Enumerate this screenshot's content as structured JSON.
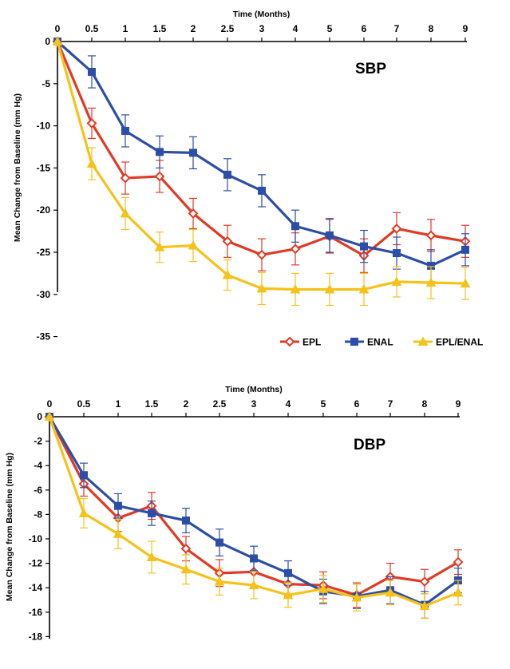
{
  "chart_data": [
    {
      "type": "line",
      "panel_label": "SBP",
      "xlabel": "Time (Months)",
      "ylabel": "Mean Change from Baseline (mm Hg)",
      "x_ticks": [
        "0",
        "0.5",
        "1",
        "1.5",
        "2",
        "2.5",
        "3",
        "4",
        "5",
        "6",
        "7",
        "8",
        "9"
      ],
      "y_ticks": [
        "0",
        "-5",
        "-10",
        "-15",
        "-20",
        "-25",
        "-30",
        "-35"
      ],
      "ylim": [
        -35,
        0
      ],
      "grid": false,
      "series": [
        {
          "name": "EPL",
          "color": "#e03a25",
          "marker": "diamond",
          "values": [
            0,
            -9.7,
            -16.2,
            -16.0,
            -20.4,
            -23.7,
            -25.3,
            -24.6,
            -23.1,
            -25.4,
            -22.2,
            -23.0,
            -23.7
          ],
          "errors": [
            0,
            1.8,
            1.9,
            1.9,
            1.8,
            1.9,
            1.9,
            1.9,
            2.0,
            2.0,
            1.9,
            1.9,
            1.9
          ]
        },
        {
          "name": "ENAL",
          "color": "#2d4ea6",
          "marker": "square",
          "values": [
            0,
            -3.6,
            -10.6,
            -13.1,
            -13.2,
            -15.8,
            -17.7,
            -21.9,
            -23.0,
            -24.3,
            -25.1,
            -26.6,
            -24.7
          ],
          "errors": [
            0,
            1.9,
            1.9,
            1.9,
            1.9,
            1.9,
            1.9,
            1.9,
            2.0,
            1.9,
            1.9,
            1.9,
            1.9
          ]
        },
        {
          "name": "EPL/ENAL",
          "color": "#f5c21b",
          "marker": "triangle",
          "values": [
            0,
            -14.5,
            -20.4,
            -24.4,
            -24.2,
            -27.7,
            -29.3,
            -29.4,
            -29.4,
            -29.4,
            -28.5,
            -28.6,
            -28.7
          ],
          "errors": [
            0,
            1.9,
            1.9,
            1.8,
            1.9,
            1.8,
            1.9,
            1.9,
            1.9,
            1.9,
            1.8,
            1.9,
            1.9
          ]
        }
      ],
      "legend": "bottom-right"
    },
    {
      "type": "line",
      "panel_label": "DBP",
      "xlabel": "Time (Months)",
      "ylabel": "Mean Change from Baseline (mm Hg)",
      "x_ticks": [
        "0",
        "0.5",
        "1",
        "1.5",
        "2",
        "2.5",
        "3",
        "4",
        "5",
        "6",
        "7",
        "8",
        "9"
      ],
      "y_ticks": [
        "0",
        "-2",
        "-4",
        "-6",
        "-8",
        "-10",
        "-12",
        "-14",
        "-16",
        "-18"
      ],
      "ylim": [
        -18,
        0
      ],
      "grid": false,
      "series": [
        {
          "name": "EPL",
          "color": "#e03a25",
          "marker": "diamond",
          "values": [
            0,
            -5.5,
            -8.3,
            -7.3,
            -10.8,
            -12.8,
            -12.7,
            -13.7,
            -13.8,
            -14.6,
            -13.1,
            -13.5,
            -11.9
          ],
          "errors": [
            0,
            1.0,
            1.1,
            1.1,
            1.0,
            1.1,
            1.1,
            1.0,
            1.1,
            1.0,
            1.1,
            1.0,
            1.0
          ]
        },
        {
          "name": "ENAL",
          "color": "#2d4ea6",
          "marker": "square",
          "values": [
            0,
            -4.8,
            -7.3,
            -7.9,
            -8.5,
            -10.3,
            -11.6,
            -12.8,
            -14.3,
            -14.7,
            -14.2,
            -15.4,
            -13.4
          ],
          "errors": [
            0,
            1.0,
            1.0,
            1.0,
            1.0,
            1.1,
            1.0,
            1.0,
            1.0,
            1.0,
            1.1,
            1.1,
            1.0
          ]
        },
        {
          "name": "EPL/ENAL",
          "color": "#f5c21b",
          "marker": "triangle",
          "values": [
            0,
            -7.9,
            -9.6,
            -11.5,
            -12.5,
            -13.5,
            -13.8,
            -14.6,
            -14.1,
            -14.8,
            -14.4,
            -15.5,
            -14.4
          ],
          "errors": [
            0,
            1.2,
            1.2,
            1.3,
            1.2,
            1.1,
            1.1,
            1.0,
            1.1,
            1.1,
            1.0,
            1.0,
            1.0
          ]
        }
      ]
    }
  ]
}
